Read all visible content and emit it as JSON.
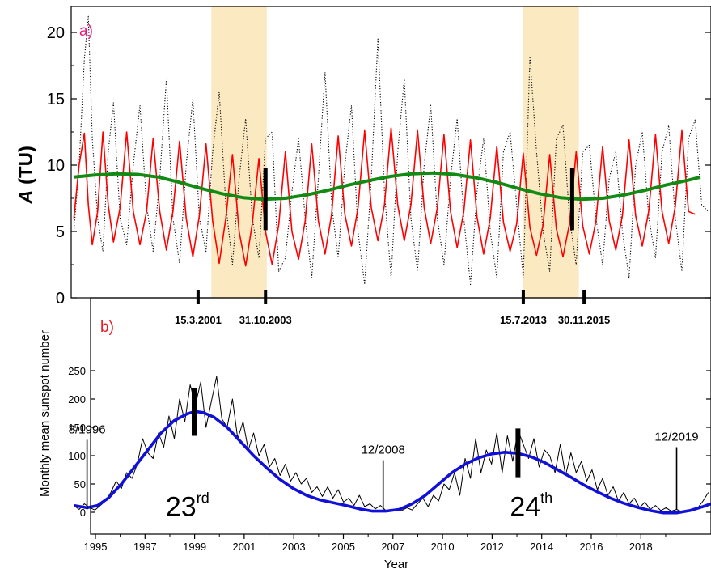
{
  "chart_data": [
    {
      "type": "line",
      "panel_label": "a)",
      "ylabel_italic": "A",
      "ylabel_rest": " (TU)",
      "xlim": [
        1995.6,
        2019.8
      ],
      "ylim": [
        0,
        22
      ],
      "yticks": [
        "0",
        "5",
        "10",
        "15",
        "20"
      ],
      "shaded_periods": [
        [
          2000.9,
          2003.0
        ],
        [
          2012.7,
          2014.8
        ]
      ],
      "markers": [
        {
          "x": 2002.95,
          "y0": 5.1,
          "y1": 9.8
        },
        {
          "x": 2014.55,
          "y0": 5.1,
          "y1": 9.8
        }
      ],
      "series": [
        {
          "style": "dotted",
          "color": "#000000",
          "x": [
            1995.7,
            1995.9,
            1996.1,
            1996.25,
            1996.4,
            1996.6,
            1996.8,
            1997.0,
            1997.2,
            1997.45,
            1997.7,
            1997.95,
            1998.2,
            1998.45,
            1998.7,
            1998.95,
            1999.2,
            1999.45,
            1999.7,
            1999.95,
            2000.2,
            2000.45,
            2000.7,
            2000.95,
            2001.2,
            2001.45,
            2001.7,
            2001.95,
            2002.2,
            2002.45,
            2002.7,
            2002.95,
            2003.2,
            2003.45,
            2003.7,
            2003.95,
            2004.2,
            2004.45,
            2004.7,
            2004.95,
            2005.2,
            2005.45,
            2005.7,
            2005.95,
            2006.2,
            2006.45,
            2006.7,
            2006.95,
            2007.2,
            2007.45,
            2007.7,
            2007.95,
            2008.2,
            2008.45,
            2008.7,
            2008.95,
            2009.2,
            2009.45,
            2009.7,
            2009.95,
            2010.2,
            2010.45,
            2010.7,
            2010.95,
            2011.2,
            2011.45,
            2011.7,
            2011.95,
            2012.2,
            2012.45,
            2012.7,
            2012.95,
            2013.2,
            2013.45,
            2013.7,
            2013.95,
            2014.2,
            2014.45,
            2014.7,
            2014.95,
            2015.2,
            2015.45,
            2015.7,
            2015.95,
            2016.2,
            2016.45,
            2016.7,
            2016.95,
            2017.2,
            2017.45,
            2017.7,
            2017.95,
            2018.2,
            2018.45,
            2018.7,
            2018.95,
            2019.2,
            2019.45,
            2019.7
          ],
          "y": [
            5,
            10,
            18,
            21.2,
            12,
            6,
            3.5,
            11,
            14.7,
            6,
            4,
            10,
            14.5,
            7,
            3.5,
            9,
            16.5,
            6,
            2.6,
            10,
            15,
            6,
            3.5,
            11,
            15.5,
            7,
            2.5,
            9,
            13.5,
            6,
            3,
            12,
            12.5,
            2,
            3,
            8,
            12,
            6,
            1.5,
            9,
            17,
            7,
            3,
            10,
            14.5,
            5,
            1,
            9,
            19.5,
            8,
            1.5,
            11,
            16.5,
            6,
            2,
            10,
            14.5,
            6,
            2.5,
            9,
            13.5,
            6,
            1,
            8,
            12,
            5,
            1.5,
            11,
            12.5,
            7,
            1.5,
            18.2,
            11,
            5,
            2,
            12,
            13,
            6,
            2.5,
            11,
            11.5,
            6,
            2.5,
            9,
            11,
            5,
            1.5,
            10,
            12.5,
            6,
            3,
            11,
            13,
            6,
            2,
            12,
            13.4,
            7,
            6.5
          ]
        },
        {
          "style": "solid",
          "color": "#ff0000",
          "x": [
            1995.7,
            1995.9,
            1996.1,
            1996.25,
            1996.4,
            1996.6,
            1996.8,
            1997.0,
            1997.2,
            1997.45,
            1997.7,
            1997.95,
            1998.2,
            1998.45,
            1998.7,
            1998.95,
            1999.2,
            1999.45,
            1999.7,
            1999.95,
            2000.2,
            2000.45,
            2000.7,
            2000.95,
            2001.2,
            2001.45,
            2001.7,
            2001.95,
            2002.2,
            2002.45,
            2002.7,
            2002.95,
            2003.2,
            2003.45,
            2003.7,
            2003.95,
            2004.2,
            2004.45,
            2004.7,
            2004.95,
            2005.2,
            2005.45,
            2005.7,
            2005.95,
            2006.2,
            2006.45,
            2006.7,
            2006.95,
            2007.2,
            2007.45,
            2007.7,
            2007.95,
            2008.2,
            2008.45,
            2008.7,
            2008.95,
            2009.2,
            2009.45,
            2009.7,
            2009.95,
            2010.2,
            2010.45,
            2010.7,
            2010.95,
            2011.2,
            2011.45,
            2011.7,
            2011.95,
            2012.2,
            2012.45,
            2012.7,
            2012.95,
            2013.2,
            2013.45,
            2013.7,
            2013.95,
            2014.2,
            2014.45,
            2014.7,
            2014.95,
            2015.2,
            2015.45,
            2015.7,
            2015.95,
            2016.2,
            2016.45,
            2016.7,
            2016.95,
            2017.2,
            2017.45,
            2017.7,
            2017.95,
            2018.2,
            2018.45,
            2018.7,
            2018.95,
            2019.2
          ],
          "y": [
            6,
            10,
            12.4,
            7,
            4,
            6.5,
            12.5,
            7,
            4.2,
            6.8,
            12.5,
            6.5,
            4,
            6.5,
            12,
            6.5,
            3.6,
            6.5,
            11.8,
            6,
            3.1,
            6.2,
            11.6,
            5.8,
            2.6,
            6,
            10.8,
            5,
            2.4,
            5.6,
            10.5,
            5,
            2.5,
            5.5,
            11,
            5,
            2.9,
            5.8,
            11.6,
            5.8,
            3.3,
            6.3,
            12.2,
            6.3,
            3.9,
            6.8,
            12.6,
            6.8,
            4.3,
            7,
            12.8,
            7,
            4.3,
            7,
            12.6,
            6.8,
            4.1,
            6.8,
            12.3,
            6.5,
            3.8,
            6.5,
            11.9,
            6.1,
            3.3,
            6,
            11.4,
            5.7,
            3.5,
            5.6,
            10.9,
            5.3,
            3.2,
            5.5,
            10.8,
            5.2,
            3.1,
            5.6,
            11,
            5.4,
            3.3,
            5.8,
            11.4,
            5.8,
            3.6,
            6.2,
            11.9,
            6.2,
            3.9,
            6.6,
            12.3,
            6.5,
            4.1,
            6.9,
            12.6,
            6.5,
            6.3
          ]
        },
        {
          "style": "thick",
          "color": "#138a13",
          "x": [
            1995.7,
            1996.5,
            1997.3,
            1998.1,
            1998.9,
            1999.7,
            2000.5,
            2001.3,
            2002.1,
            2002.9,
            2003.7,
            2004.5,
            2005.3,
            2006.1,
            2006.9,
            2007.7,
            2008.5,
            2009.3,
            2010.1,
            2010.9,
            2011.7,
            2012.5,
            2013.3,
            2014.1,
            2014.9,
            2015.7,
            2016.5,
            2017.3,
            2018.1,
            2018.9,
            2019.4
          ],
          "y": [
            9.1,
            9.25,
            9.35,
            9.3,
            9.1,
            8.7,
            8.25,
            7.85,
            7.55,
            7.42,
            7.5,
            7.75,
            8.1,
            8.5,
            8.85,
            9.15,
            9.35,
            9.4,
            9.3,
            9.05,
            8.7,
            8.25,
            7.85,
            7.55,
            7.42,
            7.5,
            7.75,
            8.1,
            8.5,
            8.85,
            9.1
          ]
        }
      ]
    },
    {
      "type": "line",
      "panel_label": "b)",
      "xlabel": "Year",
      "ylabel": "Monthly mean sunspot number",
      "xlim": [
        1995.6,
        2019.8
      ],
      "ylim": [
        -25,
        275
      ],
      "yticks": [
        "0",
        "50",
        "100",
        "150",
        "200",
        "250"
      ],
      "xtick_labels": [
        "1995",
        "1997",
        "1999",
        "2001",
        "2003",
        "2005",
        "2007",
        "2010",
        "2012",
        "2014",
        "2016",
        "2018"
      ],
      "annotations": [
        {
          "text": "8/1996",
          "x": 1996.2,
          "y0": 5,
          "y1": 128
        },
        {
          "text": "12/2008",
          "x": 2007.4,
          "y0": 5,
          "y1": 92
        },
        {
          "text": "12/2019",
          "x": 2018.5,
          "y0": 5,
          "y1": 115
        }
      ],
      "date_labels": [
        {
          "text": "15.3.2001",
          "x": 2000.4
        },
        {
          "text": "31.10.2003",
          "x": 2002.95
        },
        {
          "text": "15.7.2013",
          "x": 2012.7
        },
        {
          "text": "30.11.2015",
          "x": 2015.0
        }
      ],
      "cycle_labels": [
        {
          "main": "23",
          "sup": "rd",
          "x": 2000.0,
          "y": 5
        },
        {
          "main": "24",
          "sup": "th",
          "x": 2013.0,
          "y": 5
        }
      ],
      "markers": [
        {
          "x": 2000.25,
          "y0": 135,
          "y1": 220
        },
        {
          "x": 2012.5,
          "y0": 62,
          "y1": 148
        }
      ],
      "series": [
        {
          "style": "thin",
          "color": "#000000",
          "x": [
            1995.7,
            1995.9,
            1996.1,
            1996.3,
            1996.5,
            1996.7,
            1996.9,
            1997.1,
            1997.3,
            1997.5,
            1997.7,
            1997.9,
            1998.1,
            1998.3,
            1998.5,
            1998.7,
            1998.9,
            1999.1,
            1999.3,
            1999.5,
            1999.7,
            1999.9,
            2000.1,
            2000.3,
            2000.5,
            2000.7,
            2000.9,
            2001.1,
            2001.3,
            2001.5,
            2001.7,
            2001.9,
            2002.1,
            2002.3,
            2002.5,
            2002.7,
            2002.9,
            2003.1,
            2003.3,
            2003.5,
            2003.7,
            2003.9,
            2004.1,
            2004.3,
            2004.5,
            2004.7,
            2004.9,
            2005.1,
            2005.3,
            2005.5,
            2005.7,
            2005.9,
            2006.1,
            2006.3,
            2006.5,
            2006.7,
            2006.9,
            2007.1,
            2007.3,
            2007.5,
            2007.7,
            2007.9,
            2008.1,
            2008.3,
            2008.5,
            2008.7,
            2008.9,
            2009.1,
            2009.3,
            2009.5,
            2009.7,
            2009.9,
            2010.1,
            2010.3,
            2010.5,
            2010.7,
            2010.9,
            2011.1,
            2011.3,
            2011.5,
            2011.7,
            2011.9,
            2012.1,
            2012.3,
            2012.5,
            2012.7,
            2012.9,
            2013.1,
            2013.3,
            2013.5,
            2013.7,
            2013.9,
            2014.1,
            2014.3,
            2014.5,
            2014.7,
            2014.9,
            2015.1,
            2015.3,
            2015.5,
            2015.7,
            2015.9,
            2016.1,
            2016.3,
            2016.5,
            2016.7,
            2016.9,
            2017.1,
            2017.3,
            2017.5,
            2017.7,
            2017.9,
            2018.1,
            2018.3,
            2018.5,
            2018.7,
            2018.9,
            2019.1,
            2019.3,
            2019.5,
            2019.7
          ],
          "y": [
            12,
            5,
            15,
            8,
            4,
            12,
            20,
            35,
            55,
            42,
            70,
            60,
            85,
            130,
            105,
            95,
            140,
            115,
            170,
            130,
            200,
            160,
            225,
            190,
            230,
            150,
            195,
            240,
            165,
            150,
            200,
            130,
            160,
            110,
            140,
            100,
            120,
            80,
            95,
            65,
            85,
            55,
            70,
            50,
            60,
            35,
            45,
            28,
            45,
            25,
            40,
            18,
            25,
            12,
            30,
            10,
            15,
            6,
            12,
            3,
            5,
            2,
            3,
            8,
            4,
            15,
            25,
            10,
            30,
            20,
            50,
            40,
            70,
            30,
            95,
            60,
            130,
            70,
            110,
            85,
            140,
            70,
            135,
            90,
            145,
            120,
            95,
            130,
            80,
            110,
            100,
            70,
            120,
            65,
            105,
            70,
            90,
            55,
            75,
            40,
            60,
            30,
            45,
            20,
            35,
            15,
            25,
            8,
            18,
            5,
            12,
            3,
            8,
            2,
            5,
            1,
            4,
            2,
            8,
            20,
            35
          ]
        },
        {
          "style": "thick",
          "color": "#1010d8",
          "x": [
            1995.7,
            1996.2,
            1996.6,
            1997.0,
            1997.5,
            1998.0,
            1998.5,
            1999.0,
            1999.5,
            2000.0,
            2000.3,
            2000.6,
            2001.0,
            2001.5,
            2002.0,
            2002.5,
            2003.0,
            2003.5,
            2004.0,
            2004.5,
            2005.0,
            2005.5,
            2006.0,
            2006.5,
            2007.0,
            2007.5,
            2008.0,
            2008.5,
            2009.0,
            2009.5,
            2010.0,
            2010.5,
            2011.0,
            2011.5,
            2012.0,
            2012.5,
            2013.0,
            2013.5,
            2014.0,
            2014.5,
            2015.0,
            2015.5,
            2016.0,
            2016.5,
            2017.0,
            2017.5,
            2018.0,
            2018.5,
            2019.0,
            2019.5,
            2019.8
          ],
          "y": [
            12,
            8,
            12,
            25,
            50,
            80,
            110,
            140,
            162,
            174,
            178,
            176,
            168,
            150,
            125,
            100,
            78,
            58,
            42,
            30,
            22,
            17,
            12,
            6,
            2,
            2,
            5,
            15,
            30,
            50,
            70,
            85,
            96,
            103,
            106,
            104,
            98,
            88,
            75,
            62,
            48,
            36,
            25,
            16,
            9,
            3,
            -1,
            -1,
            3,
            10,
            15
          ]
        }
      ]
    }
  ]
}
